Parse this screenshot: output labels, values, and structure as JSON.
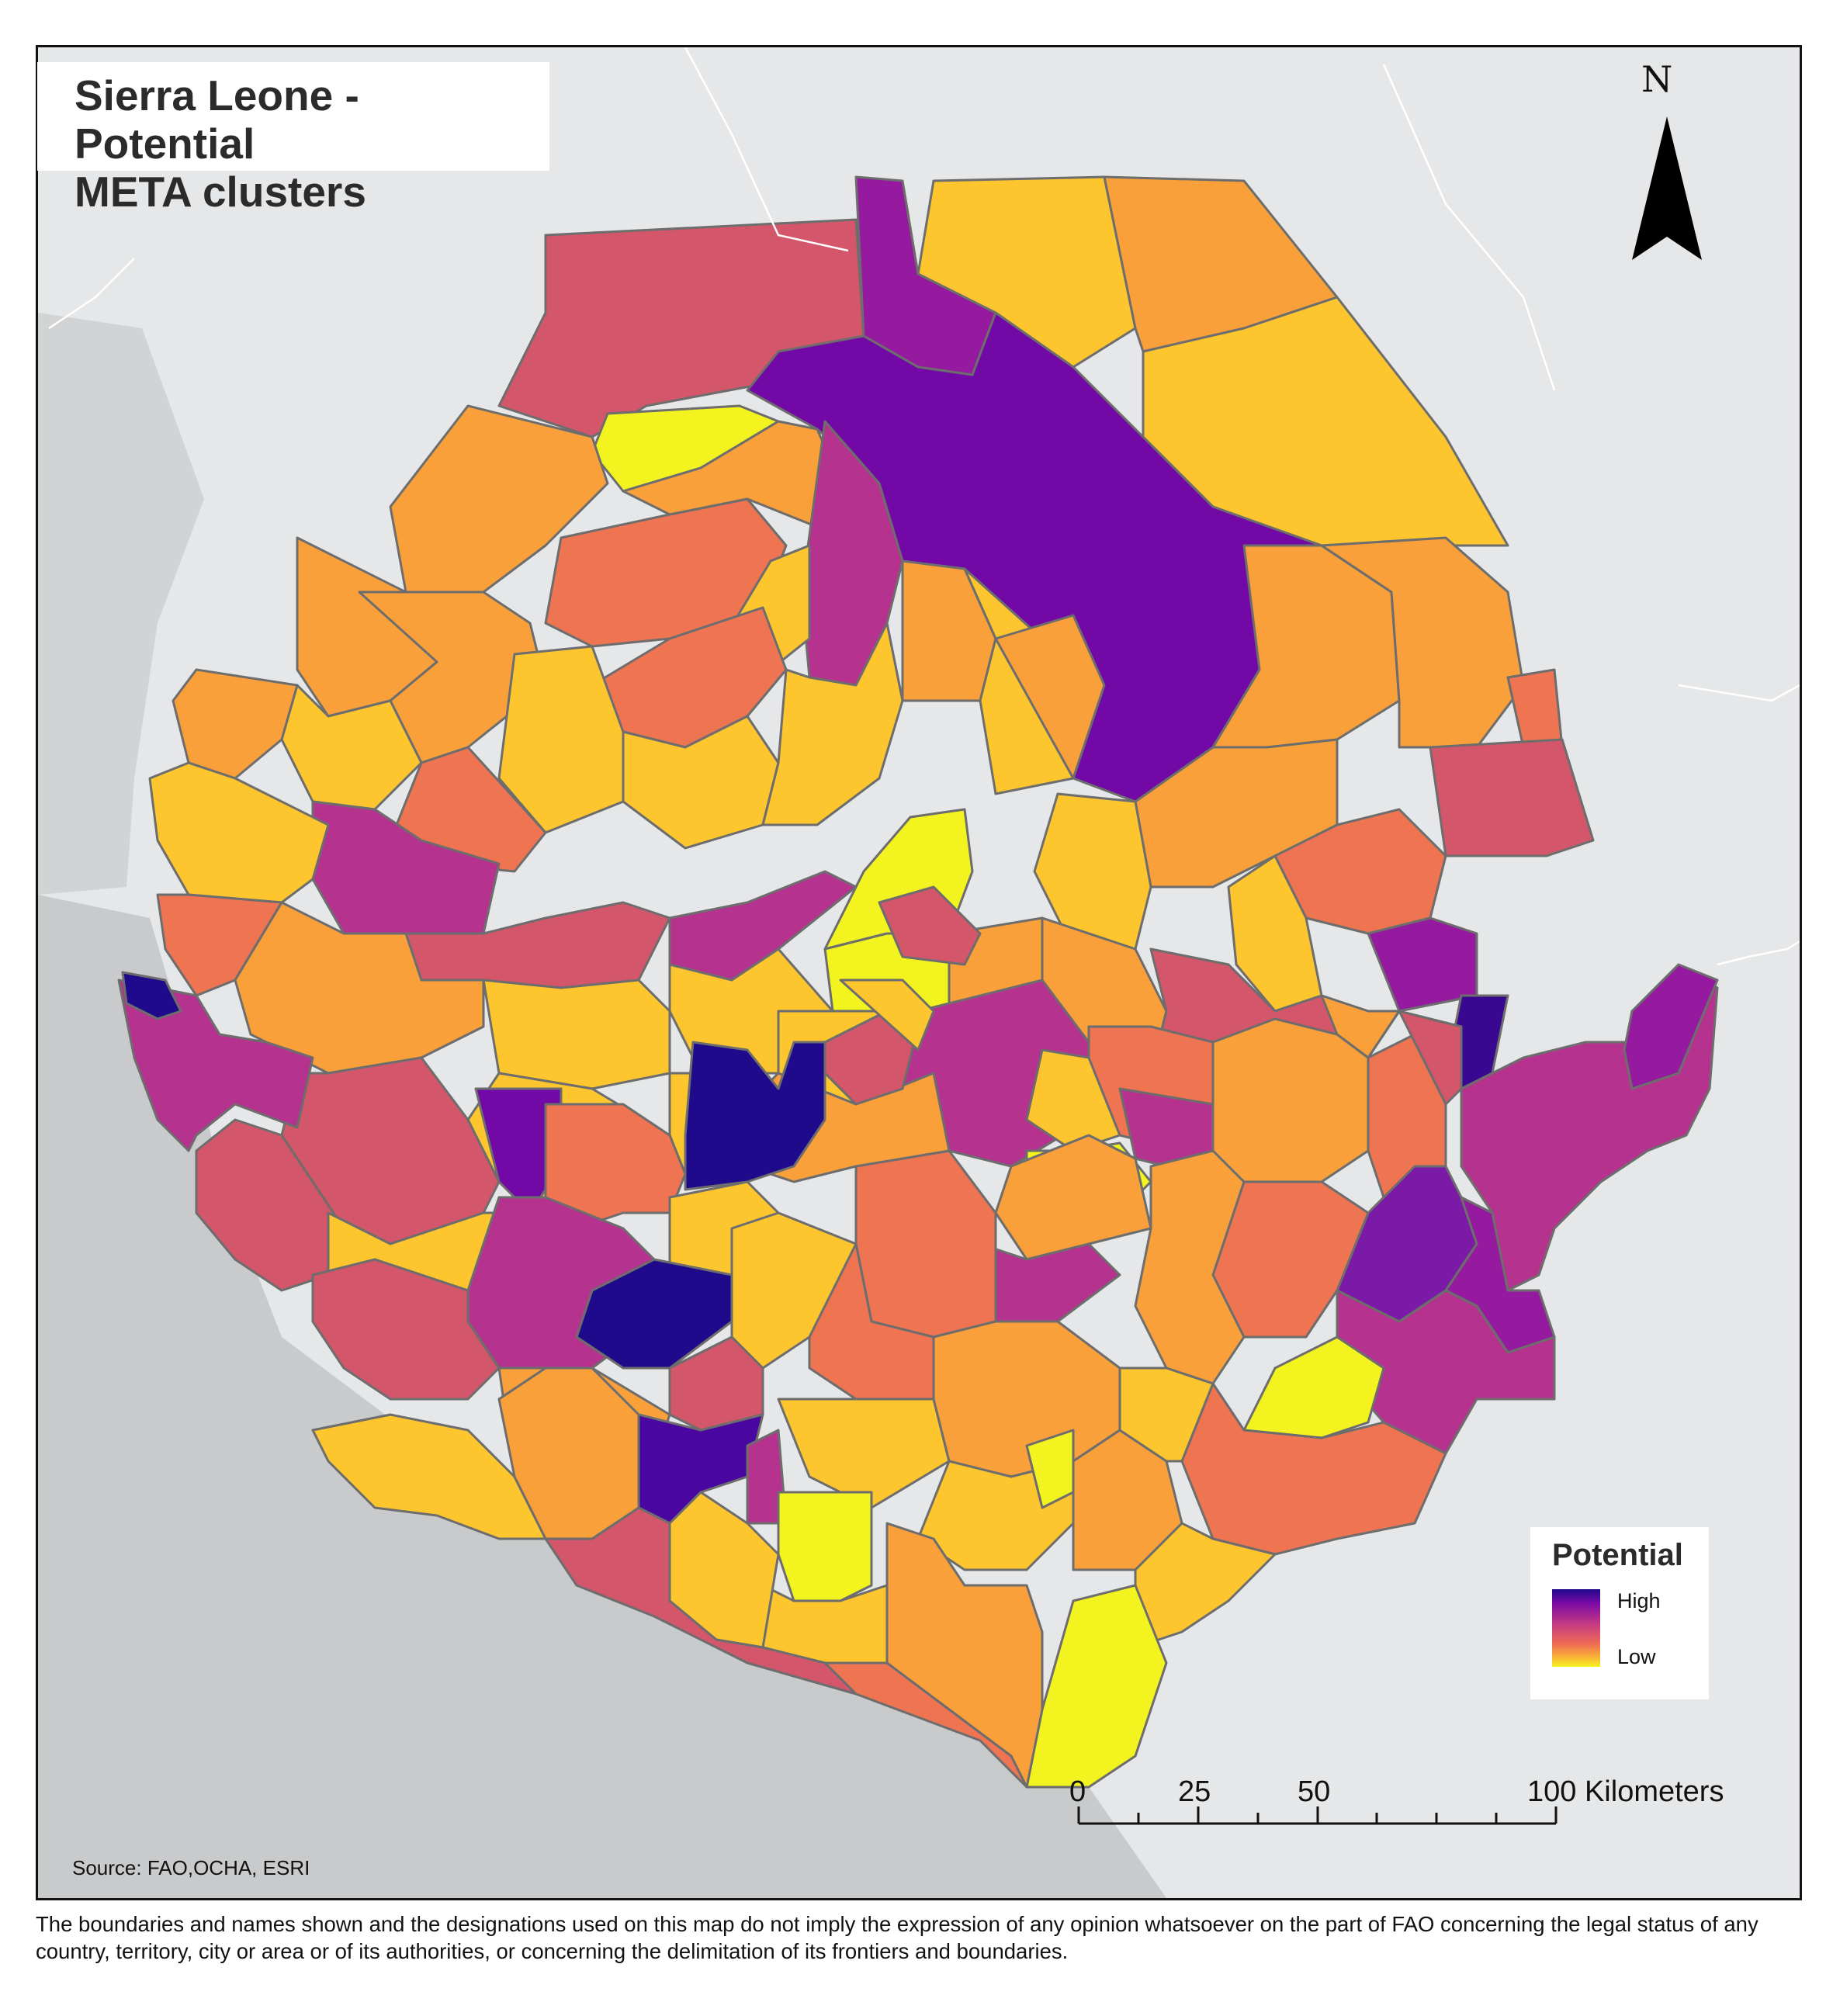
{
  "title": {
    "line1": "Sierra Leone - Potential",
    "line2": "META clusters"
  },
  "north_arrow": {
    "label": "N",
    "icon": "north-arrow-icon"
  },
  "legend": {
    "title": "Potential",
    "high_label": "High",
    "low_label": "Low",
    "ramp_colors": [
      "#1f0a8c",
      "#7a0aa6",
      "#c53a84",
      "#ee6a55",
      "#fbb535",
      "#f3f31f"
    ]
  },
  "scale_bar": {
    "ticks": [
      "0",
      "25",
      "50",
      "100 Kilometers"
    ]
  },
  "source": "Source: FAO,OCHA, ESRI",
  "disclaimer": "The boundaries and names shown and the designations used on this map do not imply the expression of any opinion whatsoever on the part of FAO concerning the legal status of any country, territory, city or area or of its authorities, or concerning the delimitation of its frontiers and boundaries.",
  "colors": {
    "sea": "#c9cacc",
    "land_background": "#e6e7e8",
    "boundary": "#6d6d6d",
    "very_high": "#1f0a8c",
    "high": "#7a0aa6",
    "mid_high": "#b5338f",
    "mid": "#d4566a",
    "mid_low": "#ee7452",
    "low": "#f9a03b",
    "lower": "#fdc62f",
    "lowest": "#f3f31f"
  }
}
